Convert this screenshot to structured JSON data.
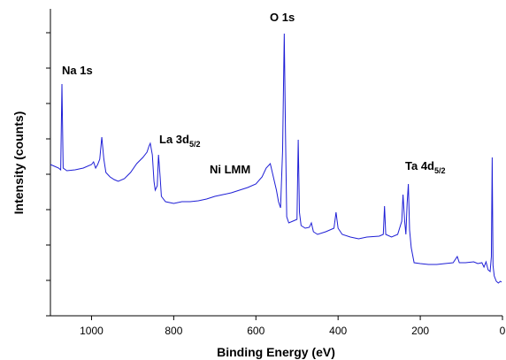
{
  "chart_data": {
    "type": "line",
    "xlabel": "Binding Energy (eV)",
    "ylabel": "Intensity (counts)",
    "xlim": [
      1100,
      0
    ],
    "xticks": [
      1000,
      800,
      600,
      400,
      200,
      0
    ],
    "ylim": [
      0,
      347
    ],
    "yticks": [
      0,
      40,
      80,
      120,
      160,
      200,
      240,
      280,
      320
    ],
    "annotations": [
      {
        "text": "Na 1s"
      },
      {
        "text": "La 3d",
        "sub": "5/2"
      },
      {
        "text": "Ni LMM"
      },
      {
        "text": "O 1s"
      },
      {
        "text": "Ta 4d",
        "sub": "5/2"
      }
    ],
    "series": [
      {
        "color": "#1f1fd6",
        "x": [
          1100,
          1090,
          1080,
          1075,
          1072,
          1069,
          1060,
          1040,
          1020,
          1000,
          995,
          990,
          985,
          980,
          975,
          970,
          965,
          955,
          945,
          935,
          920,
          905,
          890,
          875,
          865,
          860,
          857,
          852,
          848,
          845,
          840,
          837,
          833,
          830,
          820,
          800,
          780,
          760,
          740,
          720,
          700,
          680,
          660,
          640,
          620,
          600,
          585,
          575,
          565,
          560,
          550,
          545,
          540,
          535,
          531,
          528,
          525,
          520,
          510,
          500,
          497,
          494,
          490,
          480,
          470,
          465,
          460,
          450,
          430,
          410,
          405,
          400,
          390,
          370,
          350,
          330,
          300,
          290,
          287,
          284,
          270,
          255,
          245,
          242,
          238,
          235,
          232,
          229,
          226,
          222,
          215,
          200,
          180,
          160,
          140,
          120,
          110,
          105,
          90,
          70,
          60,
          50,
          45,
          40,
          35,
          30,
          27,
          25,
          23,
          20,
          15,
          10,
          5,
          2
        ],
        "values": [
          171,
          169,
          167,
          165,
          262,
          167,
          164,
          165,
          167,
          171,
          174,
          167,
          171,
          177,
          202,
          177,
          162,
          157,
          154,
          152,
          155,
          162,
          172,
          179,
          185,
          192,
          195,
          182,
          152,
          142,
          147,
          182,
          157,
          135,
          129,
          127,
          129,
          129,
          130,
          132,
          135,
          137,
          139,
          142,
          145,
          149,
          157,
          167,
          172,
          162,
          142,
          129,
          122,
          187,
          319,
          207,
          112,
          105,
          107,
          109,
          199,
          117,
          102,
          99,
          100,
          105,
          95,
          92,
          95,
          99,
          117,
          99,
          92,
          89,
          87,
          89,
          90,
          92,
          124,
          92,
          89,
          92,
          107,
          137,
          107,
          92,
          127,
          149,
          97,
          77,
          60,
          59,
          58,
          58,
          59,
          60,
          67,
          60,
          60,
          61,
          59,
          60,
          55,
          61,
          52,
          50,
          67,
          179,
          57,
          45,
          39,
          37,
          39,
          38
        ]
      }
    ]
  }
}
